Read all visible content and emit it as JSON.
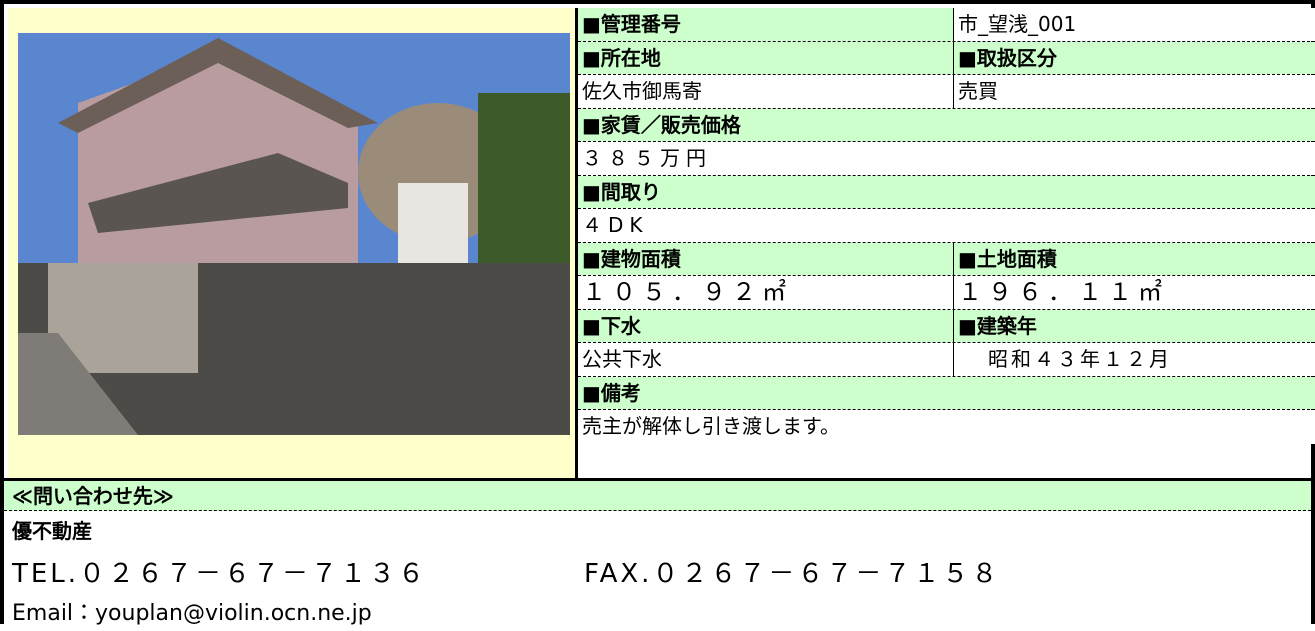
{
  "table": {
    "rows": [
      [
        "■管理番号",
        "市_望浅_001"
      ],
      [
        "■所在地",
        "■取扱区分"
      ],
      [
        "佐久市御馬寄",
        "売買"
      ],
      [
        "■家賃／販売価格"
      ],
      [
        "３８５万円"
      ],
      [
        "■間取り"
      ],
      [
        "４DK"
      ],
      [
        "■建物面積",
        "■土地面積"
      ],
      [
        "１０５．９２㎡",
        "１９６．１１㎡"
      ],
      [
        "■下水",
        "■建築年"
      ],
      [
        "公共下水",
        "昭和４３年１２月"
      ],
      [
        "■備考"
      ],
      [
        "売主が解体し引き渡します。"
      ]
    ]
  },
  "contact": {
    "heading": "≪問い合わせ先≫",
    "company": "優不動産",
    "tel": "TEL.０２６７－６７－７１３６",
    "fax": "FAX.０２６７－６７－７１５８",
    "email": "Email：youplan@violin.ocn.ne.jp"
  }
}
